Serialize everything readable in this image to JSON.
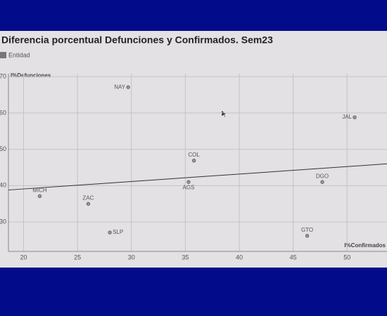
{
  "chart_data": {
    "type": "scatter",
    "title": "Diferencia porcentual Defunciones y Confirmados. Sem23",
    "xlabel": "I%Confirmados",
    "ylabel": "I%Defunciones",
    "xlim": [
      18.6,
      53.7
    ],
    "ylim": [
      21.9,
      70.8
    ],
    "xticks": [
      20,
      25,
      30,
      35,
      40,
      45,
      50
    ],
    "yticks": [
      30,
      40,
      50,
      60,
      70
    ],
    "grid": true,
    "series": [
      {
        "name": "Entidad",
        "color": "#666666",
        "labels": [
          "NAY",
          "JAL",
          "COL",
          "AGS",
          "DGO",
          "MICH",
          "ZAC",
          "SLP",
          "GTO"
        ],
        "x": [
          29.7,
          50.7,
          35.8,
          35.3,
          47.7,
          21.5,
          26.0,
          28.0,
          46.3
        ],
        "values": [
          67.1,
          58.8,
          46.9,
          41.0,
          41.0,
          37.1,
          35.0,
          27.1,
          26.2
        ]
      }
    ],
    "trendline": {
      "x": [
        18.6,
        53.7
      ],
      "values": [
        38.8,
        46.0
      ]
    }
  }
}
